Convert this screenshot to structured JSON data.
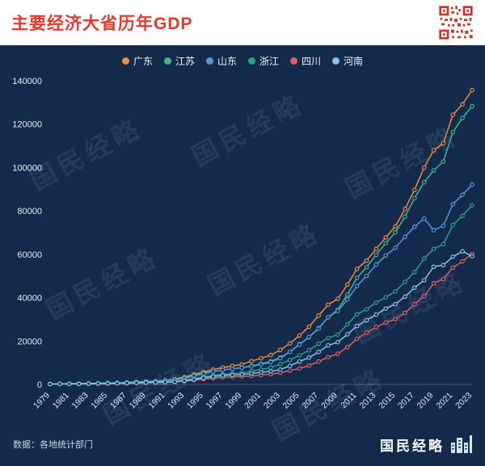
{
  "header": {
    "title": "主要经济大省历年GDP"
  },
  "legend": [
    {
      "label": "广东",
      "color": "#ef8c3e"
    },
    {
      "label": "江苏",
      "color": "#42b883"
    },
    {
      "label": "山东",
      "color": "#5596d8"
    },
    {
      "label": "浙江",
      "color": "#2f9e8f"
    },
    {
      "label": "四川",
      "color": "#dd5f5f"
    },
    {
      "label": "河南",
      "color": "#85c3ea"
    }
  ],
  "watermark": {
    "text": "国民经略"
  },
  "footer": {
    "source": "数据：各地统计部门",
    "brand": "国民经略"
  },
  "icons": {
    "qr": "qr-code-icon",
    "brand_logo": "buildings-icon"
  },
  "chart_data": {
    "type": "line",
    "title": "主要经济大省历年GDP",
    "xlabel": "",
    "ylabel": "",
    "ylim": [
      0,
      140000
    ],
    "y_ticks": [
      0,
      20000,
      40000,
      60000,
      80000,
      100000,
      120000,
      140000
    ],
    "grid": false,
    "legend_position": "top",
    "x": [
      1979,
      1980,
      1981,
      1982,
      1983,
      1984,
      1985,
      1986,
      1987,
      1988,
      1989,
      1990,
      1991,
      1992,
      1993,
      1994,
      1995,
      1996,
      1997,
      1998,
      1999,
      2000,
      2001,
      2002,
      2003,
      2004,
      2005,
      2006,
      2007,
      2008,
      2009,
      2010,
      2011,
      2012,
      2013,
      2014,
      2015,
      2016,
      2017,
      2018,
      2019,
      2020,
      2021,
      2022,
      2023
    ],
    "x_tick_labels": [
      "1979",
      "1981",
      "1983",
      "1985",
      "1987",
      "1989",
      "1991",
      "1993",
      "1995",
      "1997",
      "1999",
      "2001",
      "2003",
      "2005",
      "2007",
      "2009",
      "2011",
      "2013",
      "2015",
      "2017",
      "2019",
      "2021",
      "2023"
    ],
    "series": [
      {
        "name": "广东",
        "color": "#ef8c3e",
        "values": [
          209,
          250,
          290,
          340,
          369,
          459,
          577,
          668,
          847,
          1155,
          1381,
          1559,
          1893,
          2447,
          3469,
          4619,
          5734,
          6835,
          7775,
          8530,
          9251,
          10741,
          12039,
          13502,
          15845,
          18865,
          22557,
          26588,
          31777,
          36797,
          39483,
          46013,
          53246,
          57068,
          62475,
          67810,
          72813,
          80855,
          89705,
          99945,
          107987,
          111152,
          124370,
          129119,
          135673
        ]
      },
      {
        "name": "江苏",
        "color": "#42b883",
        "values": [
          249,
          320,
          350,
          390,
          438,
          519,
          652,
          744,
          922,
          1208,
          1322,
          1417,
          1601,
          2136,
          2998,
          4057,
          5155,
          6004,
          6680,
          7200,
          7698,
          8554,
          9457,
          10607,
          12443,
          15004,
          18599,
          21742,
          26018,
          30982,
          34457,
          41425,
          49110,
          54058,
          59753,
          65088,
          70116,
          77388,
          85870,
          93207,
          98656,
          102719,
          116364,
          122876,
          128222
        ]
      },
      {
        "name": "山东",
        "color": "#5596d8",
        "values": [
          225,
          292,
          330,
          395,
          460,
          565,
          680,
          742,
          892,
          1118,
          1293,
          1511,
          1810,
          2196,
          2770,
          3872,
          4953,
          5960,
          6650,
          7162,
          7662,
          8338,
          9195,
          10276,
          12078,
          15022,
          18367,
          21900,
          25777,
          30933,
          33897,
          39170,
          45362,
          50013,
          55230,
          59427,
          63002,
          68024,
          72678,
          76470,
          71068,
          73129,
          83096,
          87435,
          92069
        ]
      },
      {
        "name": "浙江",
        "color": "#2f9e8f",
        "values": [
          157,
          180,
          205,
          235,
          257,
          323,
          429,
          502,
          606,
          770,
          849,
          898,
          1082,
          1375,
          1926,
          2667,
          3525,
          4146,
          4638,
          4987,
          5350,
          6141,
          6898,
          7796,
          9395,
          11243,
          13418,
          15718,
          18754,
          21463,
          22990,
          27722,
          32319,
          34665,
          37757,
          40173,
          42886,
          47251,
          51768,
          58003,
          62462,
          64613,
          73516,
          77715,
          82553
        ]
      },
      {
        "name": "四川",
        "color": "#dd5f5f",
        "values": [
          185,
          229,
          243,
          277,
          312,
          363,
          421,
          467,
          541,
          659,
          739,
          891,
          1016,
          1177,
          1486,
          2001,
          2443,
          2872,
          3241,
          3474,
          3649,
          3928,
          4293,
          4725,
          5333,
          6380,
          7385,
          8690,
          10562,
          12601,
          14151,
          17185,
          21027,
          23873,
          26392,
          28537,
          30053,
          32935,
          36980,
          40678,
          46616,
          48599,
          53851,
          56750,
          60133
        ]
      },
      {
        "name": "河南",
        "color": "#85c3ea",
        "values": [
          163,
          229,
          249,
          263,
          327,
          401,
          451,
          503,
          605,
          749,
          853,
          935,
          1046,
          1280,
          1660,
          2217,
          3003,
          3661,
          4079,
          4356,
          4576,
          5053,
          5533,
          6035,
          6868,
          8554,
          10587,
          12363,
          15012,
          18019,
          19480,
          23092,
          26931,
          29599,
          32191,
          34938,
          37002,
          40472,
          44553,
          48056,
          54259,
          54997,
          58887,
          61345,
          59132
        ]
      }
    ]
  }
}
